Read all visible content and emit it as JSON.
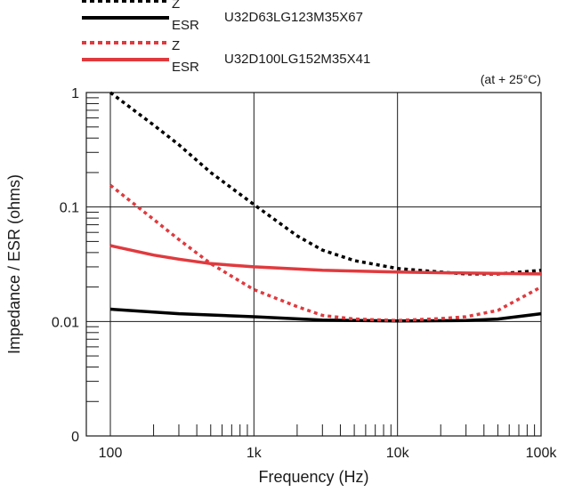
{
  "chart_data": {
    "type": "line",
    "xlabel": "Frequency (Hz)",
    "ylabel": "Impedance / ESR (ohms)",
    "x_scale": "log",
    "y_scale": "log",
    "xlim": [
      100,
      100000
    ],
    "ylim": [
      0.001,
      1
    ],
    "x_ticks": [
      {
        "value": 100,
        "label": "100"
      },
      {
        "value": 1000,
        "label": "1k"
      },
      {
        "value": 10000,
        "label": "10k"
      },
      {
        "value": 100000,
        "label": "100k"
      }
    ],
    "y_ticks": [
      {
        "value": 0.001,
        "label": "0"
      },
      {
        "value": 0.01,
        "label": "0.01"
      },
      {
        "value": 0.1,
        "label": "0.1"
      },
      {
        "value": 1,
        "label": "1"
      }
    ],
    "grid": true,
    "annotation": "(at + 25°C)",
    "legend": [
      {
        "part": "U32D63LG123M35X67",
        "entries": [
          {
            "label": "Z",
            "color": "#000000",
            "style": "dotted"
          },
          {
            "label": "ESR",
            "color": "#000000",
            "style": "solid"
          }
        ]
      },
      {
        "part": "U32D100LG152M35X41",
        "entries": [
          {
            "label": "Z",
            "color": "#e03a3e",
            "style": "dotted"
          },
          {
            "label": "ESR",
            "color": "#e03a3e",
            "style": "solid"
          }
        ]
      }
    ],
    "series": [
      {
        "color": "#000000",
        "style": "dotted",
        "points": [
          [
            100,
            1.0
          ],
          [
            200,
            0.52
          ],
          [
            300,
            0.35
          ],
          [
            500,
            0.2
          ],
          [
            1000,
            0.105
          ],
          [
            2000,
            0.056
          ],
          [
            3000,
            0.042
          ],
          [
            5000,
            0.034
          ],
          [
            10000,
            0.029
          ],
          [
            20000,
            0.027
          ],
          [
            30000,
            0.026
          ],
          [
            50000,
            0.026
          ],
          [
            100000,
            0.028
          ]
        ]
      },
      {
        "color": "#000000",
        "style": "solid",
        "points": [
          [
            100,
            0.0128
          ],
          [
            300,
            0.0117
          ],
          [
            1000,
            0.011
          ],
          [
            3000,
            0.0103
          ],
          [
            10000,
            0.0101
          ],
          [
            30000,
            0.0102
          ],
          [
            50000,
            0.0105
          ],
          [
            100000,
            0.0117
          ]
        ]
      },
      {
        "color": "#e03a3e",
        "style": "dotted",
        "points": [
          [
            100,
            0.155
          ],
          [
            200,
            0.078
          ],
          [
            300,
            0.052
          ],
          [
            500,
            0.032
          ],
          [
            1000,
            0.019
          ],
          [
            2000,
            0.0135
          ],
          [
            3000,
            0.0113
          ],
          [
            5000,
            0.0105
          ],
          [
            10000,
            0.0102
          ],
          [
            20000,
            0.0106
          ],
          [
            30000,
            0.011
          ],
          [
            50000,
            0.0125
          ],
          [
            100000,
            0.02
          ]
        ]
      },
      {
        "color": "#e03a3e",
        "style": "solid",
        "points": [
          [
            100,
            0.046
          ],
          [
            200,
            0.038
          ],
          [
            300,
            0.035
          ],
          [
            500,
            0.032
          ],
          [
            1000,
            0.03
          ],
          [
            3000,
            0.028
          ],
          [
            10000,
            0.027
          ],
          [
            30000,
            0.0265
          ],
          [
            100000,
            0.026
          ]
        ]
      }
    ]
  }
}
